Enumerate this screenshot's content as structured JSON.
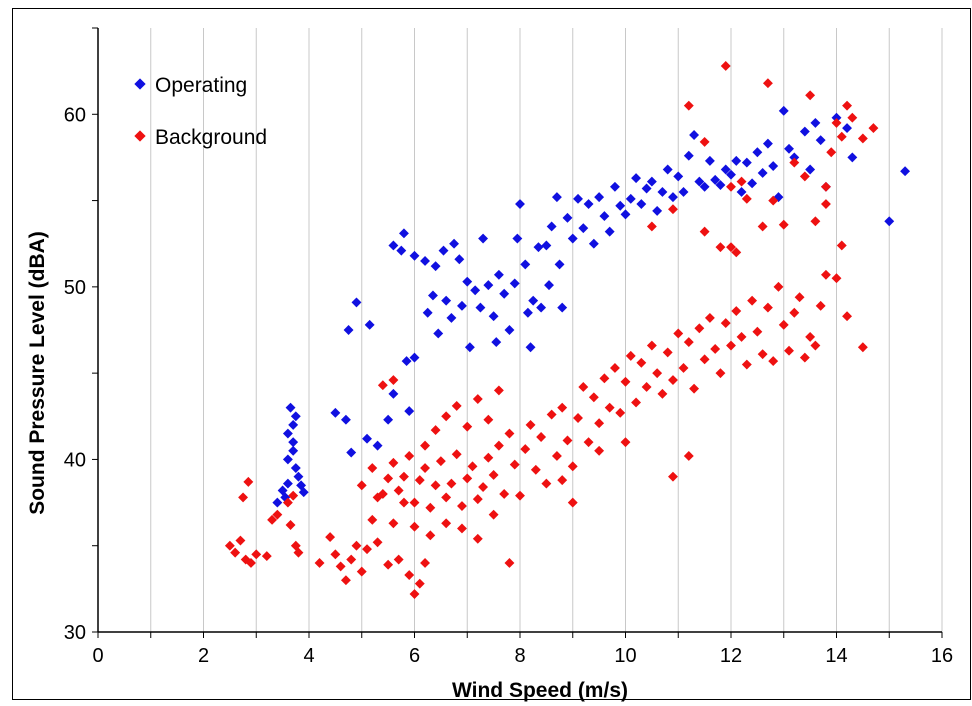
{
  "chart_data": {
    "type": "scatter",
    "title": "",
    "xlabel": "Wind Speed  (m/s)",
    "ylabel": "Sound Pressure Level  (dBA)",
    "xlim": [
      0,
      16
    ],
    "ylim": [
      30,
      65
    ],
    "xticks": [
      0,
      2,
      4,
      6,
      8,
      10,
      12,
      14,
      16
    ],
    "yticks": [
      30,
      40,
      50,
      60
    ],
    "xtick_labels": [
      "0",
      "2",
      "4",
      "6",
      "8",
      "10",
      "12",
      "14",
      "16"
    ],
    "ytick_labels": [
      "30",
      "40",
      "50",
      "60"
    ],
    "grid": "vertical lines at even x ticks and 1 m/s steps",
    "legend_position": "top-left",
    "series": [
      {
        "name": "Operating",
        "color": "#1010e0",
        "points": [
          [
            3.4,
            37.5
          ],
          [
            3.5,
            38.2
          ],
          [
            3.6,
            38.6
          ],
          [
            3.6,
            40
          ],
          [
            3.7,
            41
          ],
          [
            3.7,
            42
          ],
          [
            3.65,
            43
          ],
          [
            3.75,
            42.5
          ],
          [
            3.7,
            40.5
          ],
          [
            3.8,
            39
          ],
          [
            3.85,
            38.5
          ],
          [
            3.9,
            38.1
          ],
          [
            3.75,
            39.5
          ],
          [
            3.6,
            41.5
          ],
          [
            3.55,
            37.8
          ],
          [
            4.5,
            42.7
          ],
          [
            4.7,
            42.3
          ],
          [
            4.8,
            40.4
          ],
          [
            4.75,
            47.5
          ],
          [
            4.9,
            49.1
          ],
          [
            5.1,
            41.2
          ],
          [
            5.15,
            47.8
          ],
          [
            5.3,
            40.8
          ],
          [
            5.5,
            42.3
          ],
          [
            5.6,
            43.8
          ],
          [
            5.6,
            52.4
          ],
          [
            5.75,
            52.1
          ],
          [
            5.8,
            53.1
          ],
          [
            5.85,
            45.7
          ],
          [
            5.9,
            42.8
          ],
          [
            6.0,
            45.9
          ],
          [
            6.0,
            51.8
          ],
          [
            6.2,
            51.5
          ],
          [
            6.25,
            48.5
          ],
          [
            6.35,
            49.5
          ],
          [
            6.4,
            51.2
          ],
          [
            6.45,
            47.3
          ],
          [
            6.55,
            52.1
          ],
          [
            6.6,
            49.2
          ],
          [
            6.7,
            48.2
          ],
          [
            6.75,
            52.5
          ],
          [
            6.85,
            51.6
          ],
          [
            6.9,
            48.9
          ],
          [
            7.0,
            50.3
          ],
          [
            7.05,
            46.5
          ],
          [
            7.15,
            49.8
          ],
          [
            7.25,
            48.8
          ],
          [
            7.3,
            52.8
          ],
          [
            7.4,
            50.1
          ],
          [
            7.5,
            48.3
          ],
          [
            7.55,
            46.8
          ],
          [
            7.6,
            50.7
          ],
          [
            7.7,
            49.6
          ],
          [
            7.8,
            47.5
          ],
          [
            7.9,
            50.2
          ],
          [
            7.95,
            52.8
          ],
          [
            8.0,
            54.8
          ],
          [
            8.1,
            51.3
          ],
          [
            8.15,
            48.5
          ],
          [
            8.2,
            46.5
          ],
          [
            8.25,
            49.2
          ],
          [
            8.35,
            52.3
          ],
          [
            8.4,
            48.8
          ],
          [
            8.5,
            52.4
          ],
          [
            8.55,
            50.1
          ],
          [
            8.6,
            53.5
          ],
          [
            8.7,
            55.2
          ],
          [
            8.75,
            51.3
          ],
          [
            8.8,
            48.8
          ],
          [
            8.9,
            54.0
          ],
          [
            9.0,
            52.8
          ],
          [
            9.1,
            55.1
          ],
          [
            9.2,
            53.4
          ],
          [
            9.3,
            54.8
          ],
          [
            9.4,
            52.5
          ],
          [
            9.5,
            55.2
          ],
          [
            9.6,
            54.1
          ],
          [
            9.7,
            53.2
          ],
          [
            9.8,
            55.8
          ],
          [
            9.9,
            54.7
          ],
          [
            10.0,
            54.2
          ],
          [
            10.1,
            55.1
          ],
          [
            10.2,
            56.3
          ],
          [
            10.3,
            54.8
          ],
          [
            10.4,
            55.7
          ],
          [
            10.5,
            56.1
          ],
          [
            10.6,
            54.4
          ],
          [
            10.7,
            55.5
          ],
          [
            10.8,
            56.8
          ],
          [
            10.9,
            55.2
          ],
          [
            11.0,
            56.4
          ],
          [
            11.1,
            55.5
          ],
          [
            11.2,
            57.6
          ],
          [
            11.3,
            58.8
          ],
          [
            11.4,
            56.1
          ],
          [
            11.5,
            55.8
          ],
          [
            11.6,
            57.3
          ],
          [
            11.7,
            56.2
          ],
          [
            11.8,
            55.9
          ],
          [
            11.9,
            56.8
          ],
          [
            12.0,
            56.5
          ],
          [
            12.1,
            57.3
          ],
          [
            12.2,
            55.5
          ],
          [
            12.3,
            57.2
          ],
          [
            12.4,
            56.0
          ],
          [
            12.5,
            57.8
          ],
          [
            12.6,
            56.6
          ],
          [
            12.7,
            58.3
          ],
          [
            12.8,
            57.0
          ],
          [
            12.9,
            55.2
          ],
          [
            13.0,
            60.2
          ],
          [
            13.1,
            58.0
          ],
          [
            13.2,
            57.5
          ],
          [
            13.4,
            59.0
          ],
          [
            13.5,
            56.8
          ],
          [
            13.6,
            59.5
          ],
          [
            13.7,
            58.5
          ],
          [
            13.8,
            55.8
          ],
          [
            14.0,
            59.8
          ],
          [
            14.2,
            59.2
          ],
          [
            14.3,
            57.5
          ],
          [
            15.0,
            53.8
          ],
          [
            15.3,
            56.7
          ]
        ]
      },
      {
        "name": "Background",
        "color": "#ee1111",
        "points": [
          [
            2.5,
            35.0
          ],
          [
            2.6,
            34.6
          ],
          [
            2.7,
            35.3
          ],
          [
            2.8,
            34.2
          ],
          [
            2.9,
            34.0
          ],
          [
            3.0,
            34.5
          ],
          [
            3.2,
            34.4
          ],
          [
            2.75,
            37.8
          ],
          [
            2.85,
            38.7
          ],
          [
            3.3,
            36.5
          ],
          [
            3.4,
            36.8
          ],
          [
            3.6,
            37.5
          ],
          [
            3.65,
            36.2
          ],
          [
            3.75,
            35.0
          ],
          [
            3.8,
            34.6
          ],
          [
            3.7,
            37.9
          ],
          [
            4.2,
            34.0
          ],
          [
            4.4,
            35.5
          ],
          [
            4.5,
            34.5
          ],
          [
            4.6,
            33.8
          ],
          [
            4.7,
            33.0
          ],
          [
            4.8,
            34.2
          ],
          [
            4.9,
            35.0
          ],
          [
            5.0,
            33.5
          ],
          [
            5.1,
            34.8
          ],
          [
            5.2,
            36.5
          ],
          [
            5.3,
            35.2
          ],
          [
            5.4,
            38.0
          ],
          [
            5.5,
            33.9
          ],
          [
            5.6,
            36.3
          ],
          [
            5.7,
            34.2
          ],
          [
            5.8,
            37.5
          ],
          [
            5.9,
            33.3
          ],
          [
            6.0,
            32.2
          ],
          [
            6.1,
            32.8
          ],
          [
            6.2,
            34.0
          ],
          [
            5.0,
            38.5
          ],
          [
            5.2,
            39.5
          ],
          [
            5.3,
            37.8
          ],
          [
            5.5,
            38.9
          ],
          [
            5.6,
            39.8
          ],
          [
            5.7,
            38.2
          ],
          [
            5.8,
            39.0
          ],
          [
            5.9,
            40.2
          ],
          [
            6.0,
            37.5
          ],
          [
            6.1,
            38.8
          ],
          [
            6.2,
            39.5
          ],
          [
            6.3,
            37.2
          ],
          [
            6.4,
            38.5
          ],
          [
            6.5,
            39.9
          ],
          [
            6.6,
            37.8
          ],
          [
            6.7,
            38.6
          ],
          [
            6.8,
            40.3
          ],
          [
            6.9,
            37.3
          ],
          [
            7.0,
            38.9
          ],
          [
            7.1,
            39.6
          ],
          [
            7.2,
            37.7
          ],
          [
            7.3,
            38.4
          ],
          [
            7.4,
            40.1
          ],
          [
            7.5,
            39.1
          ],
          [
            7.6,
            40.8
          ],
          [
            7.7,
            38.0
          ],
          [
            7.8,
            41.5
          ],
          [
            7.9,
            39.7
          ],
          [
            6.2,
            40.8
          ],
          [
            6.4,
            41.7
          ],
          [
            6.6,
            42.5
          ],
          [
            6.8,
            43.1
          ],
          [
            7.0,
            41.9
          ],
          [
            7.2,
            43.5
          ],
          [
            7.4,
            42.3
          ],
          [
            7.6,
            44.0
          ],
          [
            5.4,
            44.3
          ],
          [
            5.6,
            44.6
          ],
          [
            6.0,
            36.1
          ],
          [
            6.3,
            35.6
          ],
          [
            6.6,
            36.3
          ],
          [
            6.9,
            36.0
          ],
          [
            7.2,
            35.4
          ],
          [
            7.5,
            36.8
          ],
          [
            7.8,
            34.0
          ],
          [
            8.0,
            37.9
          ],
          [
            8.1,
            40.6
          ],
          [
            8.2,
            42.0
          ],
          [
            8.3,
            39.4
          ],
          [
            8.4,
            41.3
          ],
          [
            8.5,
            38.6
          ],
          [
            8.6,
            42.6
          ],
          [
            8.7,
            40.2
          ],
          [
            8.8,
            43.0
          ],
          [
            8.9,
            41.1
          ],
          [
            9.0,
            39.6
          ],
          [
            9.1,
            42.4
          ],
          [
            9.2,
            44.2
          ],
          [
            9.3,
            41.0
          ],
          [
            9.4,
            43.6
          ],
          [
            9.5,
            42.1
          ],
          [
            9.6,
            44.7
          ],
          [
            9.7,
            43.0
          ],
          [
            9.8,
            45.3
          ],
          [
            9.9,
            42.7
          ],
          [
            10.0,
            44.5
          ],
          [
            10.1,
            46.0
          ],
          [
            10.2,
            43.3
          ],
          [
            10.3,
            45.6
          ],
          [
            10.4,
            44.2
          ],
          [
            10.5,
            46.6
          ],
          [
            10.6,
            45.0
          ],
          [
            10.7,
            43.8
          ],
          [
            10.8,
            46.2
          ],
          [
            10.9,
            44.6
          ],
          [
            11.0,
            47.3
          ],
          [
            11.1,
            45.3
          ],
          [
            11.2,
            46.8
          ],
          [
            11.3,
            44.1
          ],
          [
            11.4,
            47.6
          ],
          [
            11.5,
            45.8
          ],
          [
            11.6,
            48.2
          ],
          [
            11.7,
            46.4
          ],
          [
            11.8,
            45.0
          ],
          [
            11.9,
            47.9
          ],
          [
            12.0,
            46.6
          ],
          [
            12.1,
            48.6
          ],
          [
            12.2,
            47.1
          ],
          [
            12.3,
            45.5
          ],
          [
            12.4,
            49.2
          ],
          [
            12.5,
            47.4
          ],
          [
            12.6,
            46.1
          ],
          [
            12.7,
            48.8
          ],
          [
            12.8,
            45.7
          ],
          [
            12.9,
            50.0
          ],
          [
            13.0,
            47.8
          ],
          [
            13.1,
            46.3
          ],
          [
            13.2,
            48.5
          ],
          [
            13.3,
            49.4
          ],
          [
            13.4,
            45.9
          ],
          [
            13.5,
            47.1
          ],
          [
            13.6,
            46.6
          ],
          [
            13.7,
            48.9
          ],
          [
            13.8,
            50.7
          ],
          [
            14.0,
            50.5
          ],
          [
            14.2,
            48.3
          ],
          [
            14.5,
            46.5
          ],
          [
            11.2,
            40.2
          ],
          [
            10.9,
            39.0
          ],
          [
            10.0,
            41.0
          ],
          [
            9.5,
            40.5
          ],
          [
            9.0,
            37.5
          ],
          [
            8.8,
            38.8
          ],
          [
            10.5,
            53.5
          ],
          [
            10.9,
            54.5
          ],
          [
            11.5,
            53.2
          ],
          [
            11.8,
            52.3
          ],
          [
            12.0,
            55.8
          ],
          [
            12.1,
            52.0
          ],
          [
            12.2,
            56.1
          ],
          [
            12.3,
            55.1
          ],
          [
            12.6,
            53.5
          ],
          [
            12.8,
            55.0
          ],
          [
            13.0,
            53.6
          ],
          [
            13.2,
            57.2
          ],
          [
            13.4,
            56.4
          ],
          [
            13.5,
            61.1
          ],
          [
            13.6,
            53.8
          ],
          [
            13.8,
            55.8
          ],
          [
            13.9,
            57.8
          ],
          [
            14.0,
            59.5
          ],
          [
            14.1,
            58.7
          ],
          [
            14.2,
            60.5
          ],
          [
            14.3,
            59.8
          ],
          [
            14.5,
            58.6
          ],
          [
            14.7,
            59.2
          ],
          [
            12.7,
            61.8
          ],
          [
            11.2,
            60.5
          ],
          [
            11.9,
            62.8
          ],
          [
            11.5,
            58.4
          ],
          [
            12.0,
            52.3
          ],
          [
            14.1,
            52.4
          ],
          [
            13.8,
            54.8
          ]
        ]
      }
    ]
  }
}
